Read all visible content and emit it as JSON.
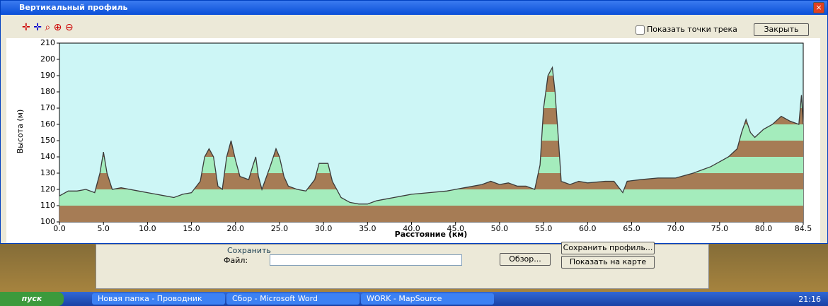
{
  "window": {
    "title": "Вертикальный профиль",
    "checkbox": "Показать точки трека",
    "close_button": "Закрыть"
  },
  "chart_data": {
    "type": "area",
    "x_label": "Расстояние  (км)",
    "y_label": "Высота (м)",
    "xlim": [
      0,
      84.5
    ],
    "ylim": [
      100,
      210
    ],
    "xticks": [
      {
        "value": 0,
        "label": "0.0"
      },
      {
        "value": 5,
        "label": "5.0"
      },
      {
        "value": 10,
        "label": "10.0"
      },
      {
        "value": 15,
        "label": "15.0"
      },
      {
        "value": 20,
        "label": "20.0"
      },
      {
        "value": 25,
        "label": "25.0"
      },
      {
        "value": 30,
        "label": "30.0"
      },
      {
        "value": 35,
        "label": "35.0"
      },
      {
        "value": 40,
        "label": "40.0"
      },
      {
        "value": 45,
        "label": "45.0"
      },
      {
        "value": 50,
        "label": "50.0"
      },
      {
        "value": 55,
        "label": "55.0"
      },
      {
        "value": 60,
        "label": "60.0"
      },
      {
        "value": 65,
        "label": "65.0"
      },
      {
        "value": 70,
        "label": "70.0"
      },
      {
        "value": 75,
        "label": "75.0"
      },
      {
        "value": 80,
        "label": "80.0"
      },
      84.5
    ],
    "yticks": [
      100,
      110,
      120,
      130,
      140,
      150,
      160,
      170,
      180,
      190,
      200,
      210
    ],
    "band_colors": [
      "#a67c55",
      "#a4ecbc"
    ],
    "line_color": "#3a3a3a",
    "background": "#cdf6f6",
    "x": [
      0,
      1,
      2,
      3,
      4,
      4.6,
      5,
      5.4,
      6,
      7,
      8,
      9,
      10,
      11,
      12,
      13,
      14,
      15,
      16,
      16.5,
      17,
      17.5,
      18,
      18.5,
      19,
      19.5,
      20,
      20.5,
      21,
      21.5,
      22,
      22.3,
      22.6,
      23,
      24,
      24.6,
      25,
      25.5,
      26,
      27,
      28,
      29,
      29.5,
      30.5,
      31,
      32,
      33,
      34,
      35,
      36,
      37,
      38,
      39,
      40,
      42,
      44,
      46,
      48,
      49,
      50,
      51,
      52,
      53,
      54,
      54.6,
      55,
      55.5,
      56,
      56.3,
      56.7,
      57,
      58,
      59,
      60,
      62,
      63,
      64,
      64.5,
      66,
      68,
      70,
      72,
      73,
      74,
      75,
      76,
      77,
      77.5,
      78,
      78.5,
      79,
      80,
      81,
      82,
      83,
      84,
      84.3,
      84.5
    ],
    "values": [
      116,
      119,
      119,
      120,
      118,
      130,
      143,
      130,
      120,
      121,
      120,
      119,
      118,
      117,
      116,
      115,
      117,
      118,
      125,
      140,
      145,
      140,
      122,
      120,
      140,
      150,
      138,
      128,
      127,
      126,
      135,
      140,
      128,
      120,
      135,
      145,
      140,
      128,
      122,
      120,
      119,
      126,
      136,
      136,
      125,
      115,
      112,
      111,
      111,
      113,
      114,
      115,
      116,
      117,
      118,
      119,
      121,
      123,
      125,
      123,
      124,
      122,
      122,
      120,
      135,
      170,
      190,
      195,
      180,
      150,
      125,
      123,
      125,
      124,
      125,
      125,
      118,
      125,
      126,
      127,
      127,
      130,
      132,
      134,
      137,
      140,
      145,
      155,
      163,
      155,
      152,
      157,
      160,
      165,
      162,
      160,
      178,
      160
    ]
  },
  "lower_panel": {
    "group_title": "Сохранить",
    "file_label": "Файл:",
    "browse": "Обзор...",
    "save_profile": "Сохранить профиль...",
    "show_on_map": "Показать на карте"
  },
  "taskbar": {
    "start": "пуск",
    "tasks": [
      "Новая папка - Проводник",
      "Сбор - Microsoft Word",
      "WORK - MapSource"
    ],
    "clock": "21:16"
  }
}
